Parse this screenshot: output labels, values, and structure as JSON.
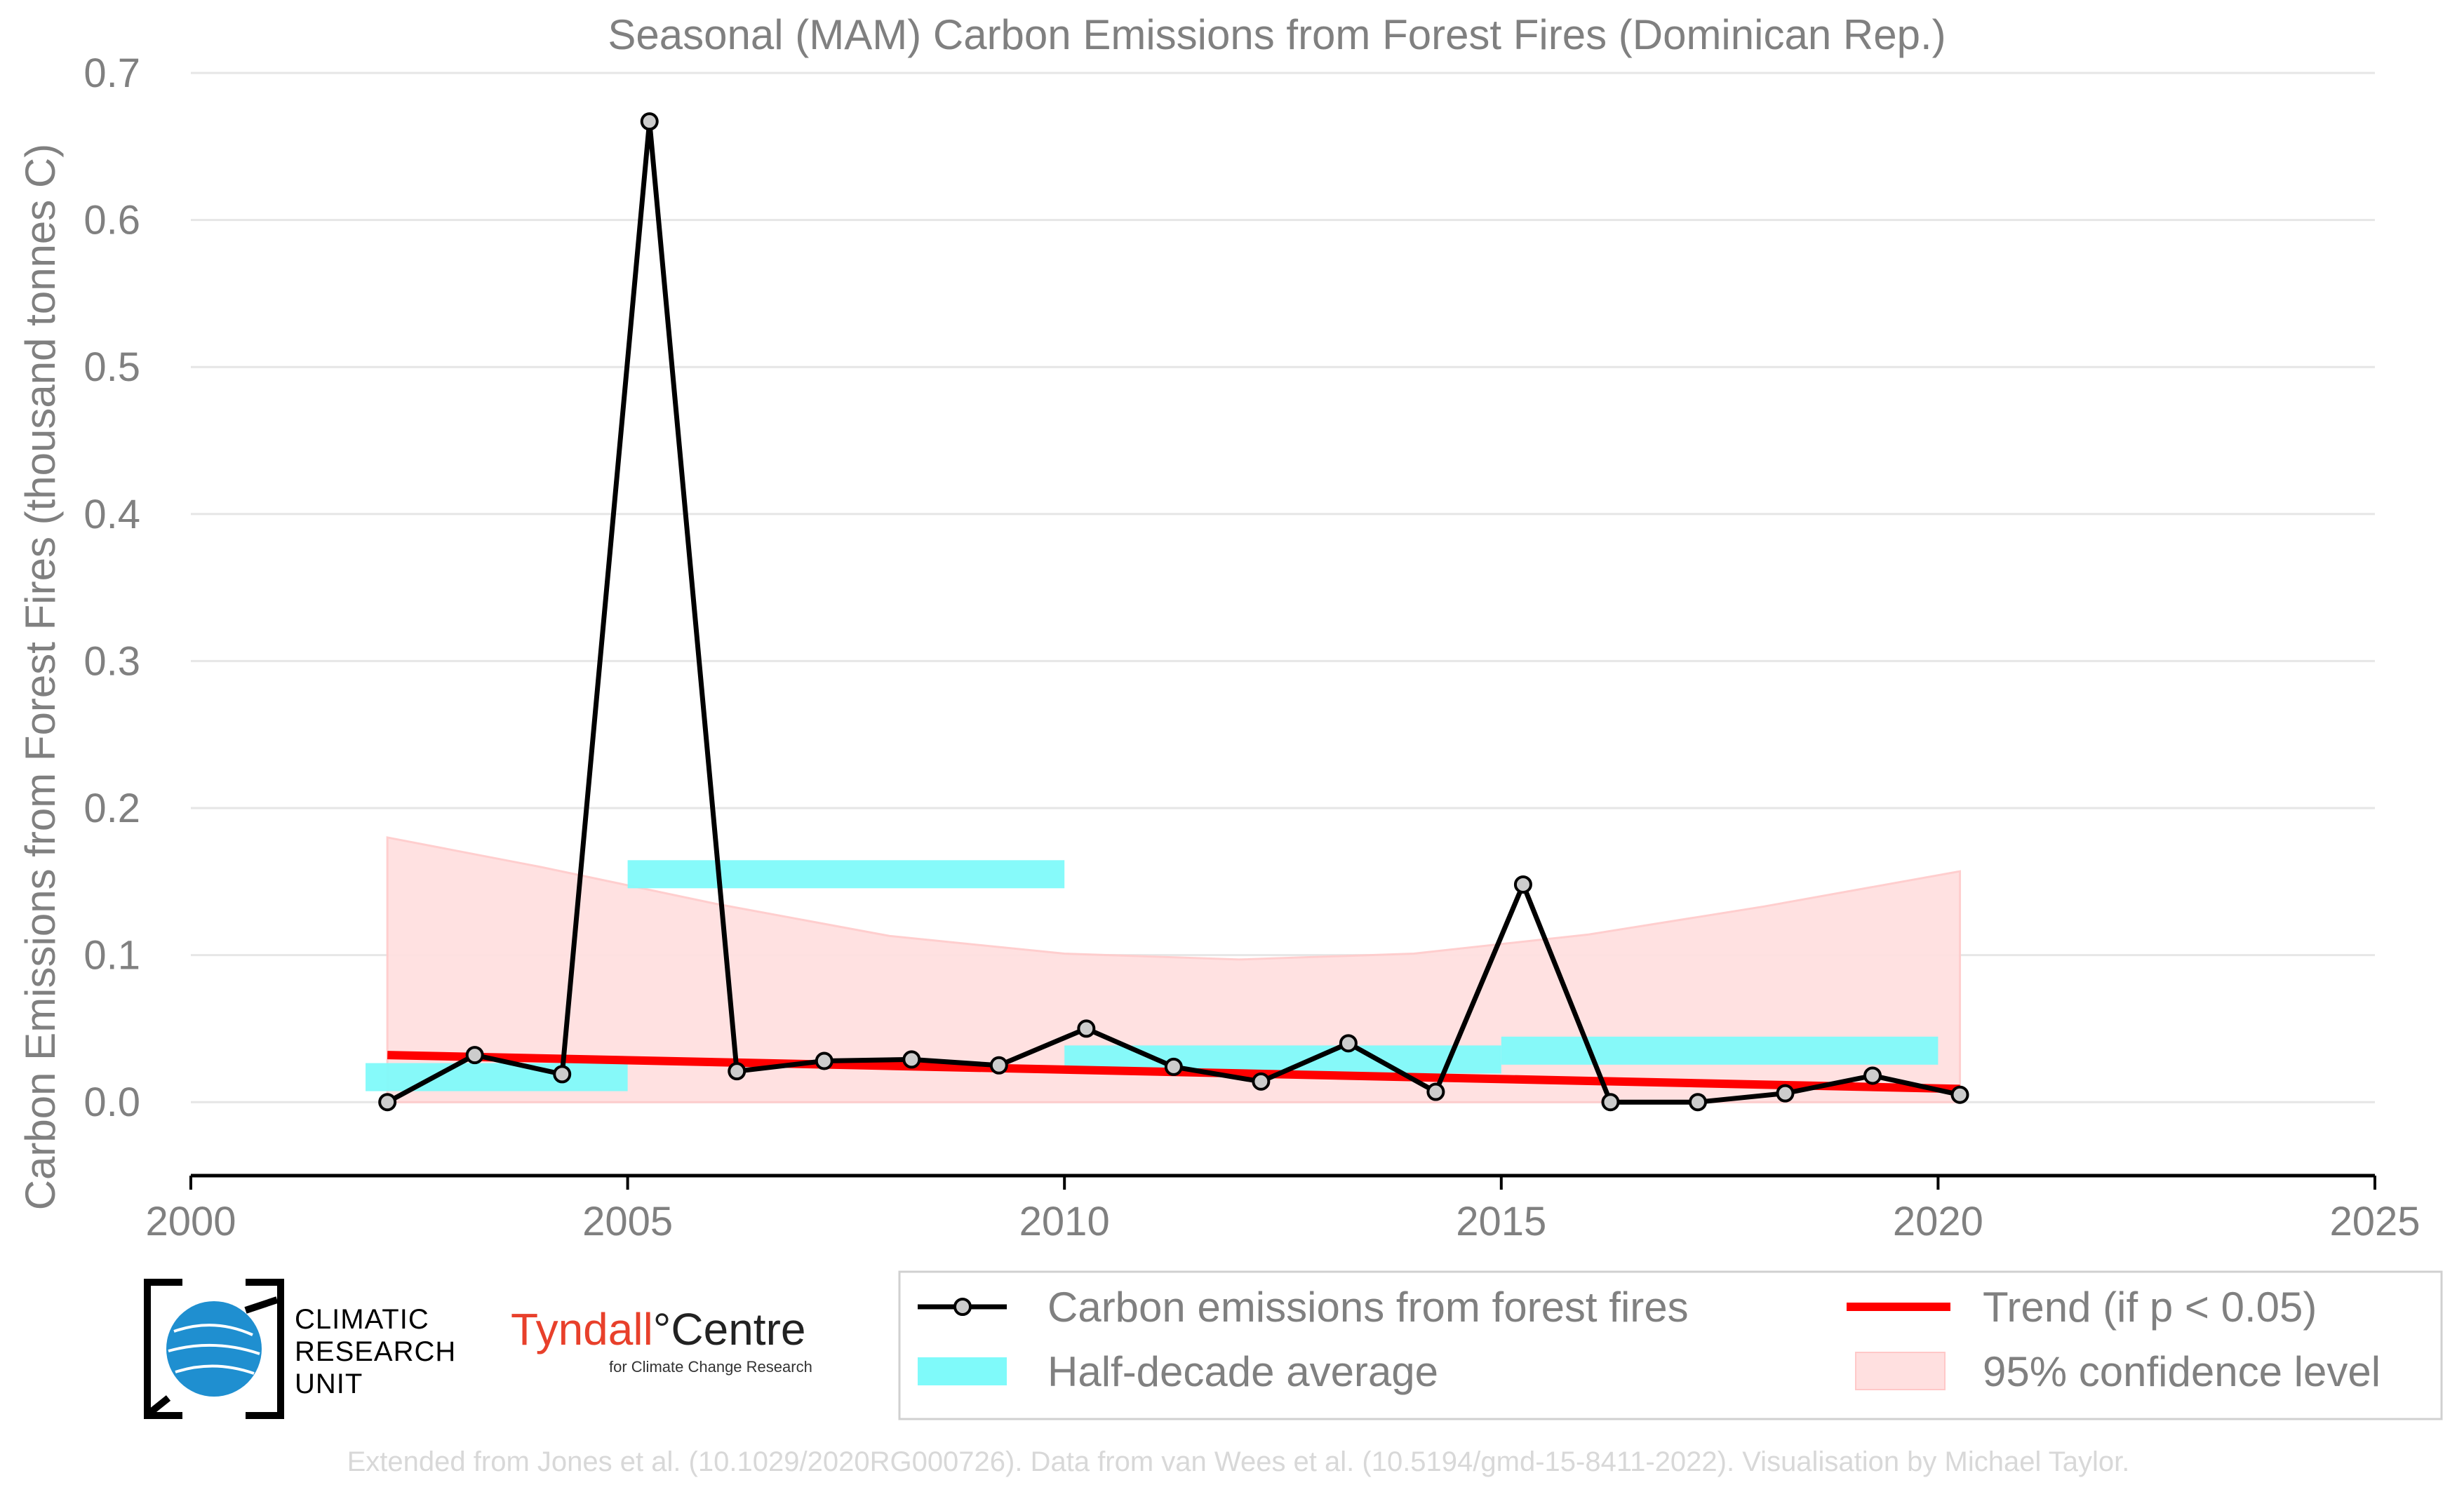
{
  "chart_data": {
    "type": "line",
    "title": "Seasonal (MAM) Carbon Emissions from Forest Fires (Dominican Rep.)",
    "xlabel": "",
    "ylabel": "Carbon Emissions from Forest Fires (thousand tonnes C)",
    "xlim": [
      2000,
      2025
    ],
    "ylim": [
      -0.05,
      0.7
    ],
    "x_ticks": [
      "2000",
      "2005",
      "2010",
      "2015",
      "2020",
      "2025"
    ],
    "y_ticks": [
      "0.0",
      "0.1",
      "0.2",
      "0.3",
      "0.4",
      "0.5",
      "0.6",
      "0.7"
    ],
    "grid": "horizontal",
    "legend_position": "bottom-right",
    "series": [
      {
        "name": "Carbon emissions from forest fires",
        "color": "#000000",
        "x": [
          2002.25,
          2003.25,
          2004.25,
          2005.25,
          2006.25,
          2007.25,
          2008.25,
          2009.25,
          2010.25,
          2011.25,
          2012.25,
          2013.25,
          2014.25,
          2015.25,
          2016.25,
          2017.25,
          2018.25,
          2019.25,
          2020.25
        ],
        "values": [
          0.0,
          0.032,
          0.019,
          0.667,
          0.021,
          0.028,
          0.029,
          0.025,
          0.05,
          0.024,
          0.014,
          0.04,
          0.007,
          0.148,
          0.0,
          0.0,
          0.006,
          0.018,
          0.005
        ]
      }
    ],
    "half_decade_average": {
      "name": "Half-decade average",
      "color": "#7ffafa",
      "segments": [
        {
          "x_start": 2002,
          "x_end": 2005,
          "value": 0.017
        },
        {
          "x_start": 2005,
          "x_end": 2010,
          "value": 0.155
        },
        {
          "x_start": 2010,
          "x_end": 2015,
          "value": 0.029
        },
        {
          "x_start": 2015,
          "x_end": 2020,
          "value": 0.035
        }
      ]
    },
    "trend": {
      "name": "Trend (if p < 0.05)",
      "color": "#ff0000",
      "x": [
        2002.25,
        2020.25
      ],
      "values": [
        0.032,
        0.009
      ]
    },
    "confidence_band": {
      "name": "95% confidence level",
      "color": "#ffe0e0",
      "x": [
        2002.25,
        2004,
        2006,
        2008,
        2010,
        2012,
        2014,
        2016,
        2018,
        2020.25
      ],
      "upper": [
        0.18,
        0.16,
        0.135,
        0.113,
        0.101,
        0.097,
        0.101,
        0.114,
        0.133,
        0.157
      ],
      "lower": [
        0.0,
        0.0,
        0.0,
        0.0,
        0.0,
        0.0,
        0.0,
        0.0,
        0.0,
        0.0
      ]
    }
  },
  "logos": {
    "cru": [
      "CLIMATIC",
      "RESEARCH",
      "UNIT"
    ],
    "tyndall_red": "Tyndall",
    "tyndall_black": "°Centre",
    "tyndall_sub": "for Climate Change Research"
  },
  "footer": "Extended from Jones et al. (10.1029/2020RG000726). Data from van Wees et al. (10.5194/gmd-15-8411-2022). Visualisation by Michael Taylor."
}
